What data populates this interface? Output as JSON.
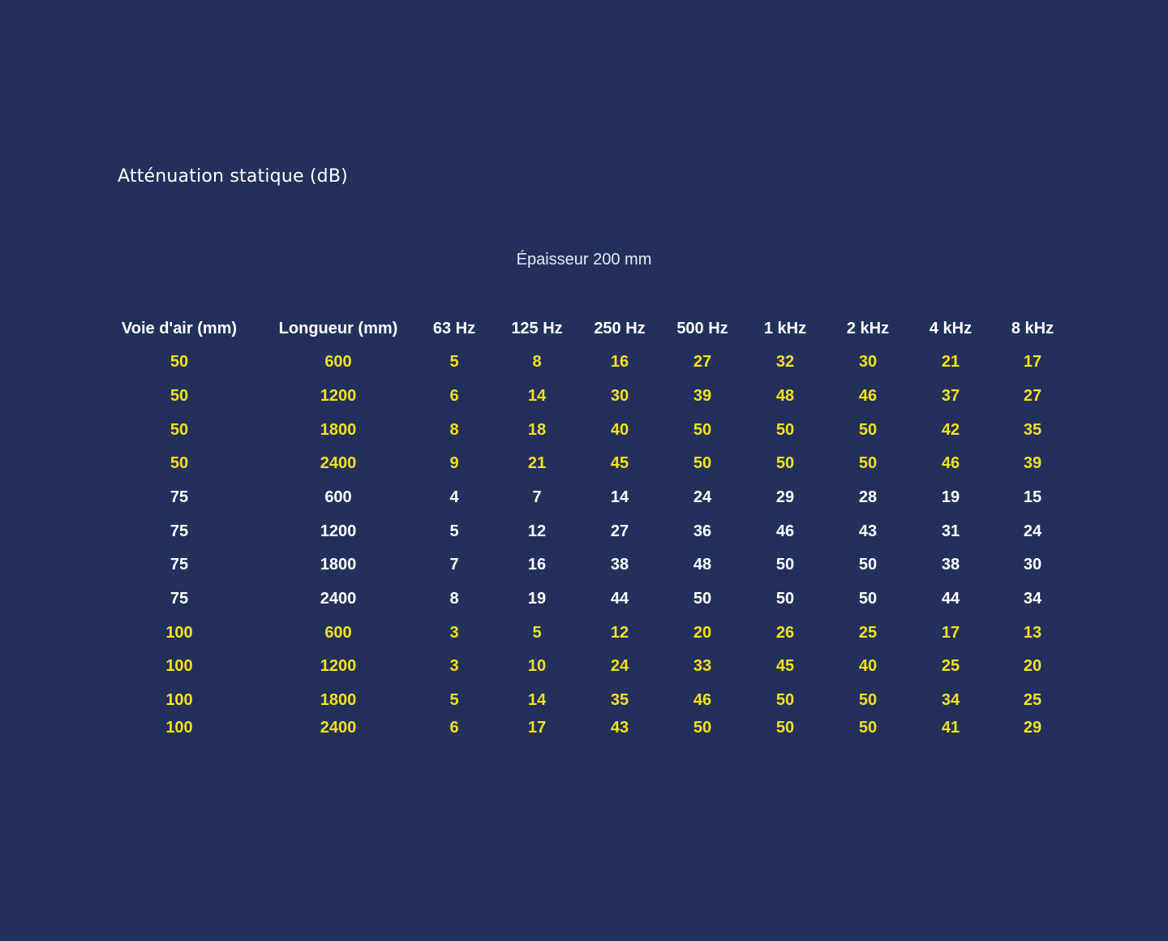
{
  "title": "Atténuation statique (dB)",
  "subtitle": "Épaisseur  200 mm",
  "colors": {
    "background": "#23305b",
    "highlight_rows": "#f2e21a",
    "normal_rows": "#ffffff",
    "header": "#ffffff"
  },
  "chart_data": {
    "type": "table",
    "title": "Atténuation statique (dB)",
    "subtitle": "Épaisseur  200 mm",
    "columns": [
      "Voie d'air (mm)",
      "Longueur (mm)",
      "63 Hz",
      "125 Hz",
      "250 Hz",
      "500 Hz",
      "1 kHz",
      "2 kHz",
      "4 kHz",
      "8 kHz"
    ],
    "rows": [
      {
        "highlight": true,
        "values": [
          "50",
          "600",
          "5",
          "8",
          "16",
          "27",
          "32",
          "30",
          "21",
          "17"
        ]
      },
      {
        "highlight": true,
        "values": [
          "50",
          "1200",
          "6",
          "14",
          "30",
          "39",
          "48",
          "46",
          "37",
          "27"
        ]
      },
      {
        "highlight": true,
        "values": [
          "50",
          "1800",
          "8",
          "18",
          "40",
          "50",
          "50",
          "50",
          "42",
          "35"
        ]
      },
      {
        "highlight": true,
        "values": [
          "50",
          "2400",
          "9",
          "21",
          "45",
          "50",
          "50",
          "50",
          "46",
          "39"
        ]
      },
      {
        "highlight": false,
        "values": [
          "75",
          "600",
          "4",
          "7",
          "14",
          "24",
          "29",
          "28",
          "19",
          "15"
        ]
      },
      {
        "highlight": false,
        "values": [
          "75",
          "1200",
          "5",
          "12",
          "27",
          "36",
          "46",
          "43",
          "31",
          "24"
        ]
      },
      {
        "highlight": false,
        "values": [
          "75",
          "1800",
          "7",
          "16",
          "38",
          "48",
          "50",
          "50",
          "38",
          "30"
        ]
      },
      {
        "highlight": false,
        "values": [
          "75",
          "2400",
          "8",
          "19",
          "44",
          "50",
          "50",
          "50",
          "44",
          "34"
        ]
      },
      {
        "highlight": true,
        "values": [
          "100",
          "600",
          "3",
          "5",
          "12",
          "20",
          "26",
          "25",
          "17",
          "13"
        ]
      },
      {
        "highlight": true,
        "values": [
          "100",
          "1200",
          "3",
          "10",
          "24",
          "33",
          "45",
          "40",
          "25",
          "20"
        ]
      },
      {
        "highlight": true,
        "values": [
          "100",
          "1800",
          "5",
          "14",
          "35",
          "46",
          "50",
          "50",
          "34",
          "25"
        ]
      },
      {
        "highlight": true,
        "values": [
          "100",
          "2400",
          "6",
          "17",
          "43",
          "50",
          "50",
          "50",
          "41",
          "29"
        ]
      }
    ]
  }
}
